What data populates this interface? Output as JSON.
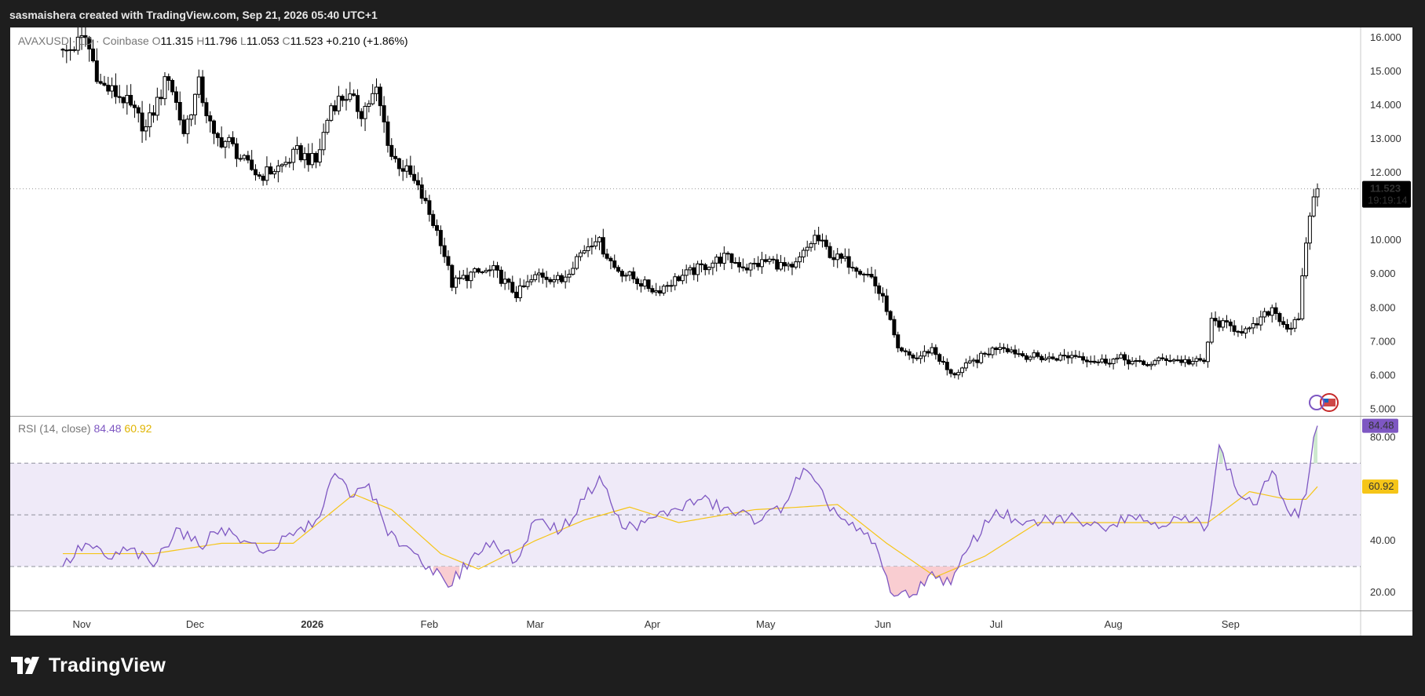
{
  "header": {
    "attribution": "sasmaishera created with TradingView.com, Sep 21, 2026 05:40 UTC+1"
  },
  "footer": {
    "brand": "TradingView",
    "logo_icon": "tradingview-logo-icon"
  },
  "colors": {
    "background": "#1e1e1e",
    "candle": "#000000",
    "rsi_line": "#7e57c2",
    "rsi_ma": "#f5c518",
    "band_fill": "#efeaf8",
    "overbought_fill": "#c8e6c9",
    "oversold_fill": "#f8c8cc"
  },
  "legend": {
    "symbol": "AVAXUSD · 1D · Coinbase",
    "open_label": "O",
    "open": "11.315",
    "high_label": "H",
    "high": "11.796",
    "low_label": "L",
    "low": "11.053",
    "close_label": "C",
    "close": "11.523",
    "change": "+0.210 (+1.86%)"
  },
  "rsi_legend": {
    "label": "RSI (14, close)",
    "value": "84.48",
    "ma_value": "60.92"
  },
  "price_badge": {
    "price": "11.523",
    "countdown": "19:19:14"
  },
  "rsi_badges": {
    "rsi": "84.48",
    "ma": "60.92"
  },
  "chart_data": [
    {
      "type": "candlestick",
      "symbol": "AVAXUSD",
      "interval": "1D",
      "x_tick_labels": [
        "Nov",
        "Dec",
        "2026",
        "Feb",
        "Mar",
        "Apr",
        "May",
        "Jun",
        "Jul",
        "Aug",
        "Sep"
      ],
      "y_tick_labels": [
        "16.000",
        "15.000",
        "14.000",
        "13.000",
        "12.000",
        "10.000",
        "9.000",
        "8.000",
        "7.000",
        "6.000",
        "5.000"
      ],
      "ylim": [
        4.8,
        16.3
      ],
      "close_waypoints": [
        [
          "Oct 27",
          15.5
        ],
        [
          "Nov 2",
          16.0
        ],
        [
          "Nov 6",
          14.6
        ],
        [
          "Nov 12",
          14.2
        ],
        [
          "Nov 18",
          13.3
        ],
        [
          "Nov 24",
          14.9
        ],
        [
          "Nov 28",
          13.2
        ],
        [
          "Dec 2",
          14.6
        ],
        [
          "Dec 6",
          13.0
        ],
        [
          "Dec 10",
          12.9
        ],
        [
          "Dec 14",
          12.3
        ],
        [
          "Dec 18",
          11.9
        ],
        [
          "Dec 24",
          12.2
        ],
        [
          "Dec 28",
          12.6
        ],
        [
          "Jan 2",
          12.3
        ],
        [
          "Jan 6",
          14.0
        ],
        [
          "Jan 10",
          14.3
        ],
        [
          "Jan 14",
          13.8
        ],
        [
          "Jan 18",
          14.4
        ],
        [
          "Jan 22",
          12.5
        ],
        [
          "Jan 27",
          11.9
        ],
        [
          "Jan 30",
          11.3
        ],
        [
          "Feb 4",
          10.0
        ],
        [
          "Feb 7",
          8.7
        ],
        [
          "Feb 12",
          9.0
        ],
        [
          "Feb 18",
          9.1
        ],
        [
          "Feb 24",
          8.4
        ],
        [
          "Mar 2",
          9.0
        ],
        [
          "Mar 8",
          8.8
        ],
        [
          "Mar 12",
          9.5
        ],
        [
          "Mar 17",
          10.1
        ],
        [
          "Mar 22",
          9.2
        ],
        [
          "Mar 28",
          8.8
        ],
        [
          "Apr 2",
          8.5
        ],
        [
          "Apr 8",
          8.9
        ],
        [
          "Apr 14",
          9.2
        ],
        [
          "Apr 20",
          9.5
        ],
        [
          "Apr 26",
          9.2
        ],
        [
          "May 2",
          9.4
        ],
        [
          "May 8",
          9.1
        ],
        [
          "May 14",
          10.1
        ],
        [
          "May 19",
          9.5
        ],
        [
          "May 24",
          9.3
        ],
        [
          "May 29",
          8.9
        ],
        [
          "Jun 2",
          8.0
        ],
        [
          "Jun 5",
          6.7
        ],
        [
          "Jun 10",
          6.5
        ],
        [
          "Jun 14",
          6.8
        ],
        [
          "Jun 19",
          6.0
        ],
        [
          "Jun 25",
          6.4
        ],
        [
          "Jul 2",
          6.9
        ],
        [
          "Jul 8",
          6.6
        ],
        [
          "Jul 15",
          6.5
        ],
        [
          "Jul 22",
          6.6
        ],
        [
          "Jul 28",
          6.4
        ],
        [
          "Aug 3",
          6.5
        ],
        [
          "Aug 9",
          6.3
        ],
        [
          "Aug 15",
          6.5
        ],
        [
          "Aug 21",
          6.4
        ],
        [
          "Aug 25",
          6.4
        ],
        [
          "Aug 27",
          7.6
        ],
        [
          "Sep 2",
          7.4
        ],
        [
          "Sep 6",
          7.3
        ],
        [
          "Sep 12",
          8.0
        ],
        [
          "Sep 16",
          7.4
        ],
        [
          "Sep 19",
          7.6
        ],
        [
          "Sep 21",
          10.0
        ],
        [
          "Sep 23",
          11.3
        ],
        [
          "Sep 24",
          11.523
        ]
      ]
    },
    {
      "type": "line",
      "name": "RSI (14, close)",
      "y_tick_labels": [
        "80.00",
        "40.00",
        "20.00"
      ],
      "ylim": [
        13,
        88
      ],
      "bands": {
        "upper": 70,
        "middle": 50,
        "lower": 30
      },
      "rsi_waypoints": [
        [
          "Oct 27",
          30
        ],
        [
          "Nov 2",
          39
        ],
        [
          "Nov 8",
          33
        ],
        [
          "Nov 14",
          37
        ],
        [
          "Nov 20",
          30
        ],
        [
          "Nov 26",
          45
        ],
        [
          "Dec 2",
          38
        ],
        [
          "Dec 8",
          45
        ],
        [
          "Dec 14",
          40
        ],
        [
          "Dec 20",
          36
        ],
        [
          "Dec 27",
          42
        ],
        [
          "Jan 2",
          48
        ],
        [
          "Jan 7",
          66
        ],
        [
          "Jan 12",
          57
        ],
        [
          "Jan 16",
          62
        ],
        [
          "Jan 21",
          42
        ],
        [
          "Jan 26",
          38
        ],
        [
          "Feb 1",
          30
        ],
        [
          "Feb 6",
          22
        ],
        [
          "Feb 12",
          33
        ],
        [
          "Feb 18",
          40
        ],
        [
          "Feb 24",
          32
        ],
        [
          "Mar 1",
          48
        ],
        [
          "Mar 8",
          44
        ],
        [
          "Mar 14",
          56
        ],
        [
          "Mar 18",
          65
        ],
        [
          "Mar 24",
          45
        ],
        [
          "Mar 30",
          47
        ],
        [
          "Apr 6",
          52
        ],
        [
          "Apr 14",
          56
        ],
        [
          "Apr 22",
          51
        ],
        [
          "Apr 30",
          48
        ],
        [
          "May 6",
          54
        ],
        [
          "May 11",
          68
        ],
        [
          "May 17",
          55
        ],
        [
          "May 23",
          46
        ],
        [
          "May 30",
          39
        ],
        [
          "Jun 3",
          20
        ],
        [
          "Jun 8",
          18
        ],
        [
          "Jun 14",
          28
        ],
        [
          "Jun 19",
          23
        ],
        [
          "Jun 24",
          38
        ],
        [
          "Jul 1",
          52
        ],
        [
          "Jul 8",
          46
        ],
        [
          "Jul 15",
          48
        ],
        [
          "Jul 22",
          49
        ],
        [
          "Jul 29",
          45
        ],
        [
          "Aug 5",
          50
        ],
        [
          "Aug 12",
          47
        ],
        [
          "Aug 19",
          48
        ],
        [
          "Aug 26",
          46
        ],
        [
          "Aug 29",
          77
        ],
        [
          "Sep 3",
          58
        ],
        [
          "Sep 8",
          54
        ],
        [
          "Sep 12",
          67
        ],
        [
          "Sep 16",
          52
        ],
        [
          "Sep 19",
          49
        ],
        [
          "Sep 21",
          58
        ],
        [
          "Sep 23",
          80
        ],
        [
          "Sep 24",
          84.48
        ]
      ],
      "ma_waypoints": [
        [
          "Oct 27",
          35
        ],
        [
          "Nov 20",
          35
        ],
        [
          "Dec 8",
          39
        ],
        [
          "Dec 27",
          39
        ],
        [
          "Jan 12",
          58
        ],
        [
          "Jan 22",
          52
        ],
        [
          "Feb 4",
          35
        ],
        [
          "Feb 14",
          29
        ],
        [
          "Mar 1",
          40
        ],
        [
          "Mar 14",
          48
        ],
        [
          "Mar 26",
          53
        ],
        [
          "Apr 8",
          47
        ],
        [
          "Apr 28",
          52
        ],
        [
          "May 10",
          53
        ],
        [
          "May 20",
          54
        ],
        [
          "Jun 2",
          39
        ],
        [
          "Jun 15",
          26
        ],
        [
          "Jun 28",
          34
        ],
        [
          "Jul 12",
          47
        ],
        [
          "Aug 2",
          47
        ],
        [
          "Aug 26",
          47
        ],
        [
          "Sep 6",
          59
        ],
        [
          "Sep 16",
          56
        ],
        [
          "Sep 21",
          56
        ],
        [
          "Sep 24",
          60.92
        ]
      ]
    }
  ]
}
